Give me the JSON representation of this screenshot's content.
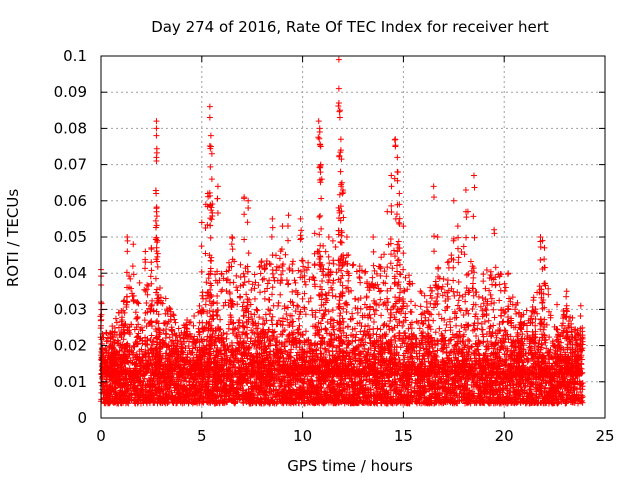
{
  "chart_data": {
    "type": "scatter",
    "title": "Day 274 of 2016, Rate Of TEC Index for receiver hert",
    "xlabel": "GPS time / hours",
    "ylabel": "ROTI / TECUs",
    "xlim": [
      0,
      25
    ],
    "ylim": [
      0,
      0.1
    ],
    "x_ticks": [
      0,
      5,
      10,
      15,
      20,
      25
    ],
    "x_tick_labels": [
      "0",
      "5",
      "10",
      "15",
      "20",
      "25"
    ],
    "y_ticks": [
      0,
      0.01,
      0.02,
      0.03,
      0.04,
      0.05,
      0.06,
      0.07,
      0.08,
      0.09,
      0.1
    ],
    "y_tick_labels": [
      "0",
      "0.01",
      "0.02",
      "0.03",
      "0.04",
      "0.05",
      "0.06",
      "0.07",
      "0.08",
      "0.09",
      "0.1"
    ],
    "grid": true,
    "marker": "+",
    "color": "#ff0000",
    "x_data_range": [
      0,
      23.9
    ],
    "baseline_band": [
      0.004,
      0.02
    ],
    "notable_points": [
      {
        "x": 0.0,
        "y": 0.041
      },
      {
        "x": 0.0,
        "y": 0.032
      },
      {
        "x": 1.3,
        "y": 0.05
      },
      {
        "x": 1.6,
        "y": 0.048
      },
      {
        "x": 2.2,
        "y": 0.046
      },
      {
        "x": 2.5,
        "y": 0.047
      },
      {
        "x": 2.75,
        "y": 0.082
      },
      {
        "x": 2.75,
        "y": 0.08
      },
      {
        "x": 2.75,
        "y": 0.078
      },
      {
        "x": 2.75,
        "y": 0.072
      },
      {
        "x": 2.75,
        "y": 0.071
      },
      {
        "x": 2.8,
        "y": 0.049
      },
      {
        "x": 5.0,
        "y": 0.054
      },
      {
        "x": 5.2,
        "y": 0.059
      },
      {
        "x": 5.3,
        "y": 0.062
      },
      {
        "x": 5.4,
        "y": 0.086
      },
      {
        "x": 5.4,
        "y": 0.083
      },
      {
        "x": 5.45,
        "y": 0.078
      },
      {
        "x": 5.45,
        "y": 0.075
      },
      {
        "x": 5.5,
        "y": 0.073
      },
      {
        "x": 5.5,
        "y": 0.066
      },
      {
        "x": 5.8,
        "y": 0.064
      },
      {
        "x": 6.5,
        "y": 0.05
      },
      {
        "x": 7.1,
        "y": 0.061
      },
      {
        "x": 7.3,
        "y": 0.06
      },
      {
        "x": 7.3,
        "y": 0.058
      },
      {
        "x": 8.5,
        "y": 0.055
      },
      {
        "x": 9.0,
        "y": 0.053
      },
      {
        "x": 9.3,
        "y": 0.056
      },
      {
        "x": 9.9,
        "y": 0.055
      },
      {
        "x": 10.6,
        "y": 0.051
      },
      {
        "x": 10.8,
        "y": 0.082
      },
      {
        "x": 10.85,
        "y": 0.08
      },
      {
        "x": 10.85,
        "y": 0.079
      },
      {
        "x": 10.9,
        "y": 0.075
      },
      {
        "x": 10.9,
        "y": 0.07
      },
      {
        "x": 10.95,
        "y": 0.066
      },
      {
        "x": 11.3,
        "y": 0.05
      },
      {
        "x": 11.8,
        "y": 0.099
      },
      {
        "x": 11.8,
        "y": 0.091
      },
      {
        "x": 11.8,
        "y": 0.087
      },
      {
        "x": 11.85,
        "y": 0.085
      },
      {
        "x": 11.85,
        "y": 0.083
      },
      {
        "x": 11.9,
        "y": 0.077
      },
      {
        "x": 11.9,
        "y": 0.074
      },
      {
        "x": 11.95,
        "y": 0.065
      },
      {
        "x": 12.0,
        "y": 0.063
      },
      {
        "x": 12.2,
        "y": 0.05
      },
      {
        "x": 13.5,
        "y": 0.05
      },
      {
        "x": 14.2,
        "y": 0.057
      },
      {
        "x": 14.4,
        "y": 0.067
      },
      {
        "x": 14.6,
        "y": 0.077
      },
      {
        "x": 14.6,
        "y": 0.075
      },
      {
        "x": 14.7,
        "y": 0.072
      },
      {
        "x": 14.7,
        "y": 0.068
      },
      {
        "x": 14.8,
        "y": 0.062
      },
      {
        "x": 14.8,
        "y": 0.059
      },
      {
        "x": 15.0,
        "y": 0.053
      },
      {
        "x": 16.5,
        "y": 0.064
      },
      {
        "x": 16.7,
        "y": 0.05
      },
      {
        "x": 17.5,
        "y": 0.06
      },
      {
        "x": 17.7,
        "y": 0.053
      },
      {
        "x": 18.1,
        "y": 0.063
      },
      {
        "x": 18.2,
        "y": 0.057
      },
      {
        "x": 18.5,
        "y": 0.067
      },
      {
        "x": 19.5,
        "y": 0.052
      },
      {
        "x": 20.2,
        "y": 0.04
      },
      {
        "x": 21.8,
        "y": 0.05
      },
      {
        "x": 21.9,
        "y": 0.049
      },
      {
        "x": 22.0,
        "y": 0.047
      },
      {
        "x": 23.1,
        "y": 0.035
      },
      {
        "x": 23.8,
        "y": 0.031
      }
    ],
    "envelope": [
      {
        "x": 0.0,
        "y": 0.022
      },
      {
        "x": 0.5,
        "y": 0.025
      },
      {
        "x": 1.0,
        "y": 0.032
      },
      {
        "x": 1.5,
        "y": 0.042
      },
      {
        "x": 2.0,
        "y": 0.038
      },
      {
        "x": 2.5,
        "y": 0.037
      },
      {
        "x": 3.0,
        "y": 0.036
      },
      {
        "x": 3.5,
        "y": 0.03
      },
      {
        "x": 4.0,
        "y": 0.026
      },
      {
        "x": 4.5,
        "y": 0.028
      },
      {
        "x": 5.0,
        "y": 0.034
      },
      {
        "x": 5.5,
        "y": 0.044
      },
      {
        "x": 6.0,
        "y": 0.04
      },
      {
        "x": 6.5,
        "y": 0.045
      },
      {
        "x": 7.0,
        "y": 0.043
      },
      {
        "x": 7.5,
        "y": 0.041
      },
      {
        "x": 8.0,
        "y": 0.044
      },
      {
        "x": 8.5,
        "y": 0.048
      },
      {
        "x": 9.0,
        "y": 0.046
      },
      {
        "x": 9.5,
        "y": 0.044
      },
      {
        "x": 10.0,
        "y": 0.045
      },
      {
        "x": 10.5,
        "y": 0.046
      },
      {
        "x": 11.0,
        "y": 0.048
      },
      {
        "x": 11.5,
        "y": 0.049
      },
      {
        "x": 12.0,
        "y": 0.048
      },
      {
        "x": 12.5,
        "y": 0.045
      },
      {
        "x": 13.0,
        "y": 0.041
      },
      {
        "x": 13.5,
        "y": 0.045
      },
      {
        "x": 14.0,
        "y": 0.046
      },
      {
        "x": 14.5,
        "y": 0.05
      },
      {
        "x": 15.0,
        "y": 0.045
      },
      {
        "x": 15.5,
        "y": 0.037
      },
      {
        "x": 16.0,
        "y": 0.035
      },
      {
        "x": 16.5,
        "y": 0.04
      },
      {
        "x": 17.0,
        "y": 0.042
      },
      {
        "x": 17.5,
        "y": 0.047
      },
      {
        "x": 18.0,
        "y": 0.048
      },
      {
        "x": 18.5,
        "y": 0.042
      },
      {
        "x": 19.0,
        "y": 0.04
      },
      {
        "x": 19.5,
        "y": 0.045
      },
      {
        "x": 20.0,
        "y": 0.038
      },
      {
        "x": 20.5,
        "y": 0.033
      },
      {
        "x": 21.0,
        "y": 0.03
      },
      {
        "x": 21.5,
        "y": 0.035
      },
      {
        "x": 22.0,
        "y": 0.04
      },
      {
        "x": 22.5,
        "y": 0.032
      },
      {
        "x": 23.0,
        "y": 0.03
      },
      {
        "x": 23.5,
        "y": 0.027
      },
      {
        "x": 23.9,
        "y": 0.025
      }
    ]
  }
}
